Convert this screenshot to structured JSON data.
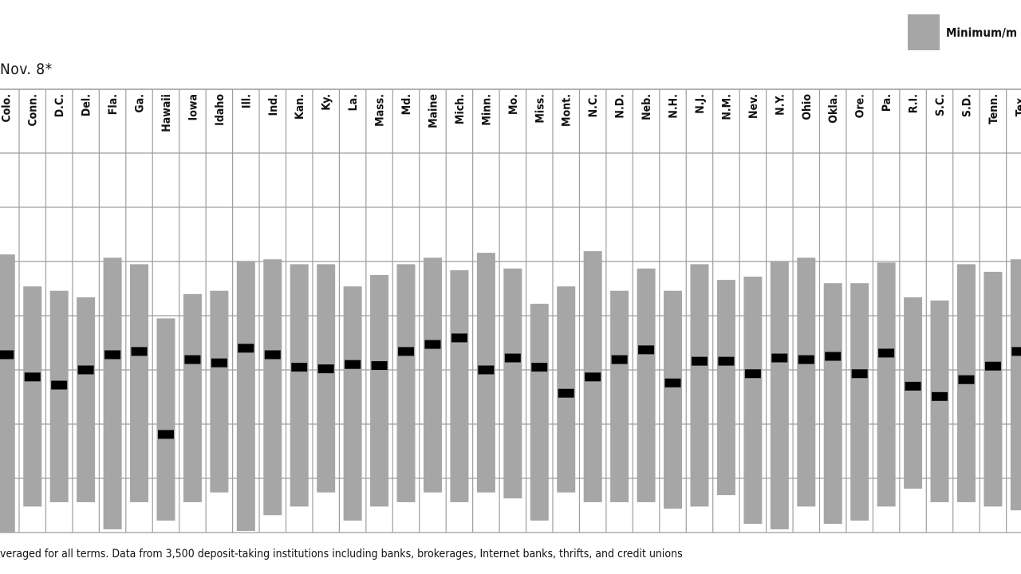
{
  "title": "Nov. 8*",
  "legend": {
    "label": "Minimum/m"
  },
  "footnote": "veraged for all terms. Data from 3,500 deposit-taking institutions including banks, brokerages, Internet banks, thrifts, and credit unions",
  "colors": {
    "bar": "#a6a6a6",
    "marker": "#000000",
    "grid": "#9e9e9e",
    "text": "#111111"
  },
  "chart_data": {
    "type": "bar",
    "grid": true,
    "categories": [
      "Colo.",
      "Conn.",
      "D.C.",
      "Del.",
      "Fla.",
      "Ga.",
      "Hawaii",
      "Iowa",
      "Idaho",
      "Ill.",
      "Ind.",
      "Kan.",
      "Ky.",
      "La.",
      "Mass.",
      "Md.",
      "Maine",
      "Mich.",
      "Minn.",
      "Mo.",
      "Miss.",
      "Mont.",
      "N.C.",
      "N.D.",
      "Neb.",
      "N.H.",
      "N.J.",
      "N.M.",
      "Nev.",
      "N.Y.",
      "Ohio",
      "Okla.",
      "Ore.",
      "Pa.",
      "R.I.",
      "S.C.",
      "S.D.",
      "Tenn.",
      "Tex."
    ],
    "series": [
      {
        "name": "Minimum/m",
        "values": [
          [
            0.0,
            5.13
          ],
          [
            0.48,
            4.54
          ],
          [
            0.56,
            4.46
          ],
          [
            0.56,
            4.34
          ],
          [
            0.06,
            5.07
          ],
          [
            0.56,
            4.95
          ],
          [
            0.22,
            3.95
          ],
          [
            0.56,
            4.4
          ],
          [
            0.74,
            4.46
          ],
          [
            0.03,
            5.01
          ],
          [
            0.32,
            5.04
          ],
          [
            0.48,
            4.95
          ],
          [
            0.74,
            4.95
          ],
          [
            0.22,
            4.54
          ],
          [
            0.48,
            4.75
          ],
          [
            0.56,
            4.95
          ],
          [
            0.74,
            5.07
          ],
          [
            0.56,
            4.84
          ],
          [
            0.74,
            5.16
          ],
          [
            0.63,
            4.87
          ],
          [
            0.22,
            4.22
          ],
          [
            0.74,
            4.54
          ],
          [
            0.56,
            5.19
          ],
          [
            0.56,
            4.46
          ],
          [
            0.56,
            4.87
          ],
          [
            0.44,
            4.46
          ],
          [
            0.48,
            4.95
          ],
          [
            0.69,
            4.66
          ],
          [
            0.16,
            4.72
          ],
          [
            0.06,
            5.01
          ],
          [
            0.48,
            5.07
          ],
          [
            0.16,
            4.6
          ],
          [
            0.22,
            4.6
          ],
          [
            0.48,
            4.98
          ],
          [
            0.81,
            4.34
          ],
          [
            0.56,
            4.28
          ],
          [
            0.56,
            4.95
          ],
          [
            0.48,
            4.81
          ],
          [
            0.41,
            5.04
          ]
        ]
      },
      {
        "name": "",
        "values": [
          3.28,
          2.87,
          2.72,
          3.0,
          3.28,
          3.34,
          1.81,
          3.19,
          3.13,
          3.4,
          3.28,
          3.05,
          3.02,
          3.1,
          3.08,
          3.34,
          3.47,
          3.59,
          3.0,
          3.22,
          3.05,
          2.57,
          2.87,
          3.19,
          3.37,
          2.76,
          3.16,
          3.16,
          2.93,
          3.22,
          3.19,
          3.25,
          2.93,
          3.31,
          2.7,
          2.51,
          2.82,
          3.07,
          3.34
        ]
      }
    ],
    "ylim": [
      0,
      7
    ]
  }
}
